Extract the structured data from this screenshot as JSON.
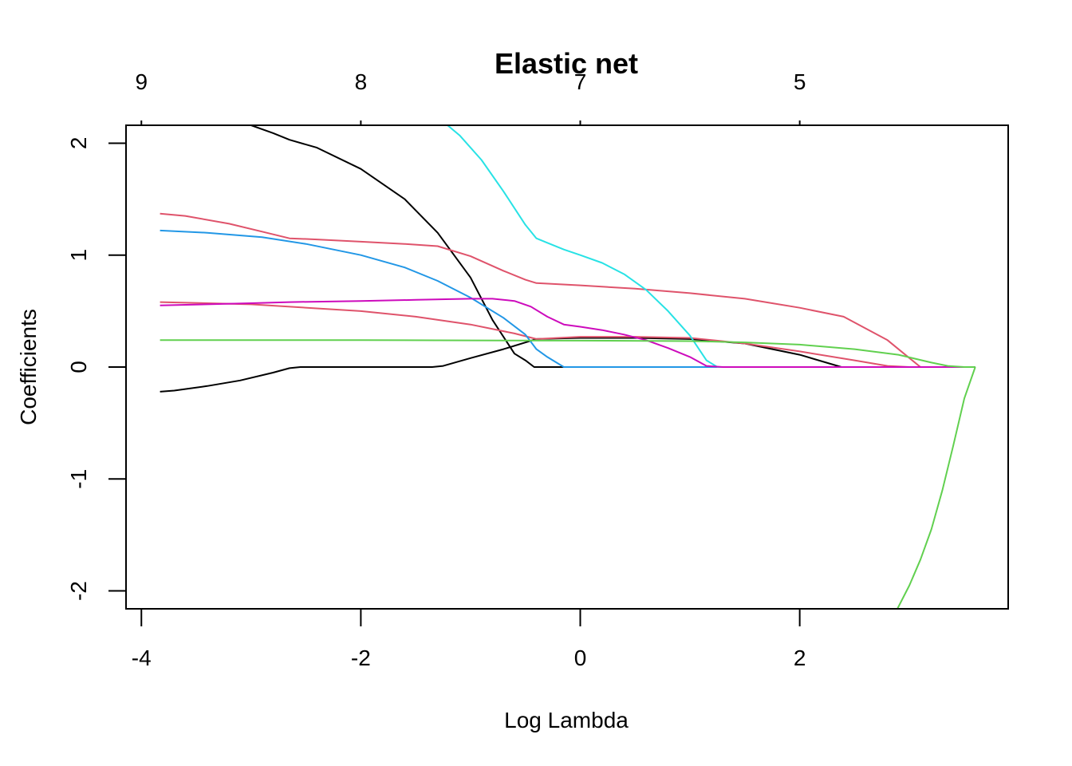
{
  "chart_data": {
    "type": "line",
    "title": "Elastic net",
    "xlabel": "Log Lambda",
    "ylabel": "Coefficients",
    "xlim": [
      -4.14,
      3.9
    ],
    "ylim": [
      -2.16,
      2.16
    ],
    "x_ticks": [
      -4,
      -2,
      0,
      2
    ],
    "x_tick_labels": [
      "-4",
      "-2",
      "0",
      "2"
    ],
    "y_ticks": [
      -2,
      -1,
      0,
      1,
      2
    ],
    "y_tick_labels": [
      "-2",
      "-1",
      "0",
      "1",
      "2"
    ],
    "top_axis": {
      "label": "",
      "ticks": [
        -4,
        -2,
        0,
        2
      ],
      "tick_labels": [
        "9",
        "8",
        "7",
        "5"
      ]
    },
    "grid": false,
    "series": [
      {
        "color": "#000000",
        "x": [
          -3.0,
          -2.8,
          -2.65,
          -2.4,
          -2.0,
          -1.6,
          -1.3,
          -1.0,
          -0.8,
          -0.6,
          -0.5,
          -0.42,
          0.0,
          1.0,
          2.0,
          3.0,
          3.6
        ],
        "y": [
          2.16,
          2.09,
          2.03,
          1.96,
          1.77,
          1.5,
          1.2,
          0.8,
          0.42,
          0.12,
          0.06,
          0.0,
          0.0,
          0.0,
          0.0,
          0.0,
          0.0
        ]
      },
      {
        "color": "#000000",
        "x": [
          -3.83,
          -3.7,
          -3.4,
          -3.1,
          -2.8,
          -2.65,
          -2.55,
          -2.0,
          -1.35,
          -1.25,
          -1.0,
          -0.7,
          -0.4,
          0.0,
          0.5,
          1.0,
          1.5,
          2.0,
          2.38,
          3.0,
          3.6
        ],
        "y": [
          -0.22,
          -0.21,
          -0.17,
          -0.12,
          -0.05,
          -0.01,
          0.0,
          0.0,
          0.0,
          0.01,
          0.08,
          0.16,
          0.25,
          0.26,
          0.26,
          0.25,
          0.21,
          0.11,
          0.0,
          0.0,
          0.0
        ]
      },
      {
        "color": "#DF536B",
        "x": [
          -3.83,
          -3.6,
          -3.2,
          -2.9,
          -2.65,
          -2.4,
          -2.0,
          -1.6,
          -1.3,
          -1.0,
          -0.7,
          -0.5,
          -0.4,
          0.0,
          0.5,
          1.0,
          1.5,
          2.0,
          2.4,
          2.8,
          3.0,
          3.1,
          3.3,
          3.6
        ],
        "y": [
          1.37,
          1.35,
          1.28,
          1.21,
          1.15,
          1.14,
          1.12,
          1.1,
          1.08,
          0.99,
          0.86,
          0.78,
          0.75,
          0.73,
          0.7,
          0.66,
          0.61,
          0.53,
          0.45,
          0.24,
          0.08,
          0.0,
          0.0,
          0.0
        ]
      },
      {
        "color": "#DF536B",
        "x": [
          -3.83,
          -3.0,
          -2.0,
          -1.5,
          -1.0,
          -0.6,
          -0.4,
          0.0,
          0.5,
          1.0,
          1.5,
          2.0,
          2.5,
          2.8,
          3.0,
          3.6
        ],
        "y": [
          0.58,
          0.56,
          0.5,
          0.45,
          0.38,
          0.3,
          0.25,
          0.27,
          0.27,
          0.26,
          0.21,
          0.14,
          0.06,
          0.01,
          0.0,
          0.0
        ]
      },
      {
        "color": "#2297E6",
        "x": [
          -3.83,
          -3.4,
          -2.9,
          -2.5,
          -2.0,
          -1.6,
          -1.3,
          -1.0,
          -0.7,
          -0.5,
          -0.4,
          -0.3,
          -0.15,
          0.0,
          1.0,
          2.0,
          3.6
        ],
        "y": [
          1.22,
          1.2,
          1.16,
          1.1,
          1.0,
          0.89,
          0.77,
          0.62,
          0.44,
          0.29,
          0.16,
          0.09,
          0.0,
          0.0,
          0.0,
          0.0,
          0.0
        ]
      },
      {
        "color": "#28E2E5",
        "x": [
          -1.21,
          -1.1,
          -0.9,
          -0.7,
          -0.5,
          -0.4,
          -0.3,
          -0.15,
          0.0,
          0.2,
          0.4,
          0.6,
          0.8,
          1.0,
          1.15,
          1.25,
          1.5,
          2.0,
          3.6
        ],
        "y": [
          2.16,
          2.07,
          1.85,
          1.57,
          1.27,
          1.15,
          1.11,
          1.05,
          1.0,
          0.93,
          0.83,
          0.69,
          0.5,
          0.28,
          0.06,
          0.0,
          0.0,
          0.0,
          0.0
        ]
      },
      {
        "color": "#CD0BBC",
        "x": [
          -3.83,
          -3.0,
          -2.65,
          -2.0,
          -1.5,
          -1.0,
          -0.8,
          -0.6,
          -0.45,
          -0.3,
          -0.15,
          0.0,
          0.2,
          0.4,
          0.6,
          0.8,
          1.0,
          1.15,
          1.3,
          2.0,
          3.6
        ],
        "y": [
          0.55,
          0.57,
          0.58,
          0.59,
          0.6,
          0.61,
          0.61,
          0.59,
          0.54,
          0.45,
          0.38,
          0.36,
          0.33,
          0.29,
          0.24,
          0.17,
          0.09,
          0.01,
          0.0,
          0.0,
          0.0
        ]
      },
      {
        "color": "#61D04F",
        "x": [
          -3.83,
          -3.0,
          -2.0,
          -1.0,
          0.0,
          1.0,
          1.5,
          2.0,
          2.5,
          2.9,
          3.2,
          3.35,
          3.5,
          3.6
        ],
        "y": [
          0.24,
          0.24,
          0.24,
          0.238,
          0.236,
          0.232,
          0.22,
          0.2,
          0.16,
          0.11,
          0.04,
          0.01,
          0.0,
          0.0
        ]
      },
      {
        "color": "#61D04F",
        "x": [
          2.89,
          3.0,
          3.1,
          3.2,
          3.3,
          3.4,
          3.5,
          3.6
        ],
        "y": [
          -2.16,
          -1.95,
          -1.72,
          -1.45,
          -1.1,
          -0.7,
          -0.28,
          0.0
        ]
      }
    ]
  }
}
